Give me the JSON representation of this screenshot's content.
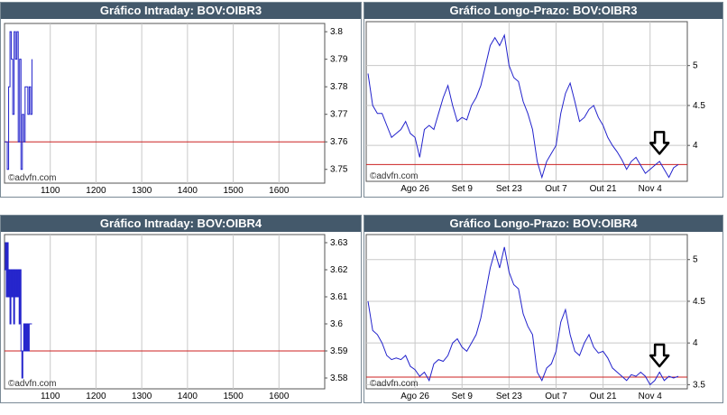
{
  "watermark": "©advfn.com",
  "colors": {
    "title_bar": "#44596b",
    "title_text": "#ffffff",
    "line": "#2222cc",
    "ref_line": "#cc2222",
    "grid": "#c8c8c8",
    "arrow": "#000000"
  },
  "chart_data": [
    {
      "type": "line",
      "title": "Gráfico Intraday: BOV:OIBR3",
      "x_ticks": [
        "1100",
        "1200",
        "1300",
        "1400",
        "1500",
        "1600"
      ],
      "y_ticks": [
        "3.8",
        "3.79",
        "3.78",
        "3.77",
        "3.76",
        "3.75"
      ],
      "x": [
        1000,
        1003,
        1006,
        1009,
        1012,
        1015,
        1018,
        1021,
        1024,
        1027,
        1030,
        1033,
        1036,
        1039,
        1042,
        1045,
        1048,
        1051,
        1054,
        1057,
        1060
      ],
      "values": [
        3.76,
        3.76,
        3.75,
        3.78,
        3.8,
        3.79,
        3.77,
        3.8,
        3.79,
        3.8,
        3.76,
        3.79,
        3.75,
        3.77,
        3.76,
        3.78,
        3.78,
        3.77,
        3.78,
        3.77,
        3.79
      ],
      "reference_value": 3.76,
      "xlim": [
        1000,
        1700
      ],
      "ylim": [
        3.745,
        3.803
      ]
    },
    {
      "type": "line",
      "title": "Gráfico Longo-Prazo: BOV:OIBR3",
      "x_ticks": [
        "Ago 26",
        "Set 9",
        "Set 23",
        "Out 7",
        "Out 21",
        "Nov 4"
      ],
      "y_ticks": [
        "5",
        "4.5",
        "4"
      ],
      "x": [
        "Ago 12",
        "Ago 13",
        "Ago 14",
        "Ago 15",
        "Ago 16",
        "Ago 19",
        "Ago 20",
        "Ago 21",
        "Ago 22",
        "Ago 23",
        "Ago 26",
        "Ago 27",
        "Ago 28",
        "Ago 29",
        "Ago 30",
        "Set 2",
        "Set 3",
        "Set 4",
        "Set 5",
        "Set 6",
        "Set 9",
        "Set 10",
        "Set 11",
        "Set 12",
        "Set 13",
        "Set 16",
        "Set 17",
        "Set 18",
        "Set 19",
        "Set 20",
        "Set 23",
        "Set 24",
        "Set 25",
        "Set 26",
        "Set 27",
        "Set 30",
        "Out 1",
        "Out 2",
        "Out 3",
        "Out 4",
        "Out 7",
        "Out 8",
        "Out 9",
        "Out 10",
        "Out 11",
        "Out 14",
        "Out 15",
        "Out 16",
        "Out 17",
        "Out 18",
        "Out 21",
        "Out 22",
        "Out 23",
        "Out 24",
        "Out 25",
        "Out 28",
        "Out 29",
        "Out 30",
        "Out 31",
        "Nov 1",
        "Nov 4",
        "Nov 5",
        "Nov 6",
        "Nov 7",
        "Nov 8",
        "Nov 11",
        "Nov 12"
      ],
      "values": [
        4.9,
        4.5,
        4.4,
        4.4,
        4.25,
        4.1,
        4.15,
        4.2,
        4.3,
        4.15,
        4.1,
        3.85,
        4.2,
        4.25,
        4.2,
        4.4,
        4.6,
        4.75,
        4.5,
        4.3,
        4.35,
        4.32,
        4.5,
        4.6,
        4.75,
        5.0,
        5.25,
        5.35,
        5.25,
        5.38,
        5.0,
        4.85,
        4.8,
        4.55,
        4.4,
        4.2,
        3.8,
        3.6,
        3.8,
        3.9,
        4.0,
        4.4,
        4.65,
        4.78,
        4.55,
        4.3,
        4.35,
        4.45,
        4.5,
        4.35,
        4.25,
        4.1,
        4.0,
        3.92,
        3.82,
        3.7,
        3.8,
        3.85,
        3.75,
        3.65,
        3.7,
        3.75,
        3.8,
        3.7,
        3.6,
        3.72,
        3.76
      ],
      "reference_value": 3.76,
      "ylim": [
        3.55,
        5.55
      ],
      "marker": "down-arrow"
    },
    {
      "type": "line",
      "title": "Gráfico Intraday: BOV:OIBR4",
      "x_ticks": [
        "1100",
        "1200",
        "1300",
        "1400",
        "1500",
        "1600"
      ],
      "y_ticks": [
        "3.63",
        "3.62",
        "3.61",
        "3.6",
        "3.59",
        "3.58"
      ],
      "x": [
        1000,
        1002,
        1004,
        1006,
        1008,
        1010,
        1012,
        1014,
        1016,
        1018,
        1020,
        1022,
        1024,
        1026,
        1028,
        1030,
        1032,
        1034,
        1036,
        1038,
        1040,
        1042,
        1044,
        1046,
        1048,
        1050,
        1052,
        1054,
        1056,
        1058,
        1060
      ],
      "values": [
        3.62,
        3.63,
        3.61,
        3.63,
        3.61,
        3.62,
        3.6,
        3.62,
        3.61,
        3.62,
        3.6,
        3.62,
        3.61,
        3.62,
        3.61,
        3.62,
        3.6,
        3.62,
        3.59,
        3.58,
        3.59,
        3.6,
        3.59,
        3.6,
        3.59,
        3.6,
        3.59,
        3.6,
        3.6,
        3.6,
        3.6
      ],
      "reference_value": 3.59,
      "xlim": [
        1000,
        1700
      ],
      "ylim": [
        3.576,
        3.633
      ]
    },
    {
      "type": "line",
      "title": "Gráfico Longo-Prazo: BOV:OIBR4",
      "x_ticks": [
        "Ago 26",
        "Set 9",
        "Set 23",
        "Out 7",
        "Out 21",
        "Nov 4"
      ],
      "y_ticks": [
        "5",
        "4.5",
        "4",
        "3.5"
      ],
      "x": [
        "Ago 12",
        "Ago 13",
        "Ago 14",
        "Ago 15",
        "Ago 16",
        "Ago 19",
        "Ago 20",
        "Ago 21",
        "Ago 22",
        "Ago 23",
        "Ago 26",
        "Ago 27",
        "Ago 28",
        "Ago 29",
        "Ago 30",
        "Set 2",
        "Set 3",
        "Set 4",
        "Set 5",
        "Set 6",
        "Set 9",
        "Set 10",
        "Set 11",
        "Set 12",
        "Set 13",
        "Set 16",
        "Set 17",
        "Set 18",
        "Set 19",
        "Set 20",
        "Set 23",
        "Set 24",
        "Set 25",
        "Set 26",
        "Set 27",
        "Set 30",
        "Out 1",
        "Out 2",
        "Out 3",
        "Out 4",
        "Out 7",
        "Out 8",
        "Out 9",
        "Out 10",
        "Out 11",
        "Out 14",
        "Out 15",
        "Out 16",
        "Out 17",
        "Out 18",
        "Out 21",
        "Out 22",
        "Out 23",
        "Out 24",
        "Out 25",
        "Out 28",
        "Out 29",
        "Out 30",
        "Out 31",
        "Nov 1",
        "Nov 4",
        "Nov 5",
        "Nov 6",
        "Nov 7",
        "Nov 8",
        "Nov 11",
        "Nov 12"
      ],
      "values": [
        4.5,
        4.15,
        4.1,
        4.0,
        3.85,
        3.8,
        3.82,
        3.8,
        3.85,
        3.72,
        3.68,
        3.6,
        3.65,
        3.55,
        3.75,
        3.8,
        3.78,
        3.85,
        4.0,
        4.05,
        3.95,
        3.9,
        4.0,
        4.1,
        4.3,
        4.6,
        4.9,
        5.1,
        4.9,
        5.15,
        4.85,
        4.7,
        4.65,
        4.35,
        4.2,
        4.1,
        3.65,
        3.55,
        3.7,
        3.75,
        3.9,
        4.25,
        4.4,
        4.1,
        3.9,
        3.85,
        4.0,
        4.1,
        3.95,
        3.88,
        3.9,
        3.82,
        3.7,
        3.65,
        3.6,
        3.55,
        3.62,
        3.6,
        3.65,
        3.6,
        3.5,
        3.55,
        3.65,
        3.55,
        3.6,
        3.58,
        3.6
      ],
      "reference_value": 3.59,
      "ylim": [
        3.45,
        5.3
      ],
      "marker": "down-arrow"
    }
  ]
}
